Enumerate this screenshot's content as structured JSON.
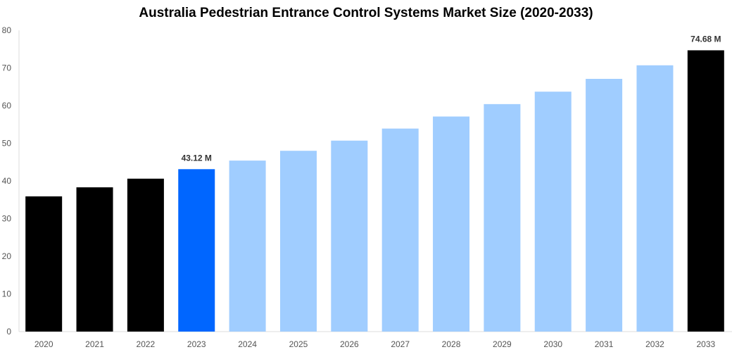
{
  "chart_data": {
    "type": "bar",
    "title": "Australia Pedestrian Entrance Control Systems Market Size (2020-2033)",
    "xlabel": "",
    "ylabel": "",
    "ylim": [
      0,
      80
    ],
    "yticks": [
      0,
      10,
      20,
      30,
      40,
      50,
      60,
      70,
      80
    ],
    "grid": false,
    "categories": [
      "2020",
      "2021",
      "2022",
      "2023",
      "2024",
      "2025",
      "2026",
      "2027",
      "2028",
      "2029",
      "2030",
      "2031",
      "2032",
      "2033"
    ],
    "values": [
      35.9,
      38.3,
      40.6,
      43.12,
      45.4,
      48.0,
      50.7,
      53.9,
      57.1,
      60.4,
      63.7,
      67.1,
      70.7,
      74.68
    ],
    "colors": [
      "#000000",
      "#000000",
      "#000000",
      "#0066ff",
      "#a0cdff",
      "#a0cdff",
      "#a0cdff",
      "#a0cdff",
      "#a0cdff",
      "#a0cdff",
      "#a0cdff",
      "#a0cdff",
      "#a0cdff",
      "#000000"
    ],
    "data_labels": {
      "2023": "43.12 M",
      "2033": "74.68 M"
    }
  }
}
